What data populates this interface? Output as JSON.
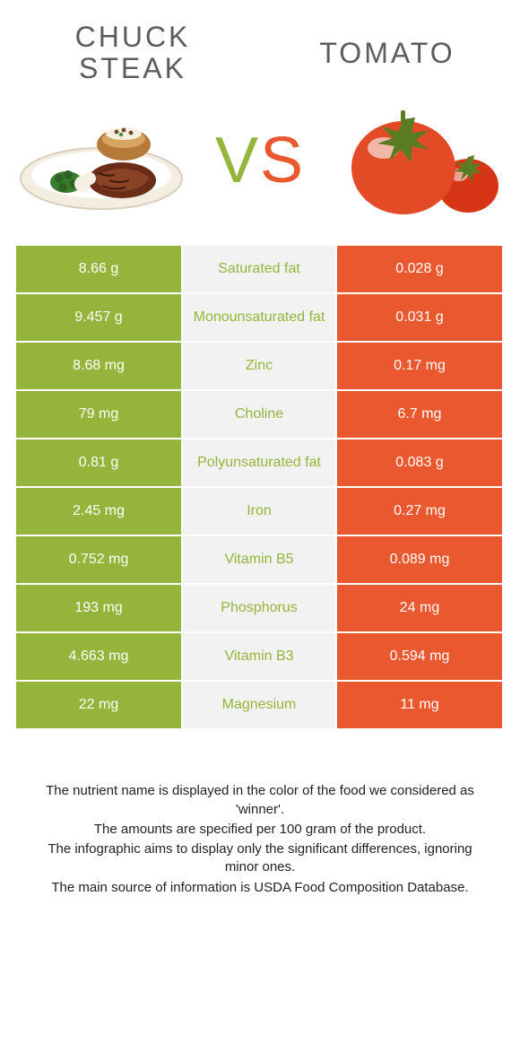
{
  "left": {
    "title": "CHUCK STEAK"
  },
  "right": {
    "title": "TOMATO"
  },
  "vs": {
    "v": "V",
    "s": "S"
  },
  "colors": {
    "left_cell": "#95b43c",
    "right_cell": "#e9582e",
    "mid_cell": "#f2f2f2",
    "label_left_win": "#95b43c",
    "label_right_win": "#e9582e",
    "footnote": "#222222"
  },
  "rows": [
    {
      "left": "8.66 g",
      "label": "Saturated fat",
      "right": "0.028 g",
      "winner": "left"
    },
    {
      "left": "9.457 g",
      "label": "Monounsaturated fat",
      "right": "0.031 g",
      "winner": "left"
    },
    {
      "left": "8.68 mg",
      "label": "Zinc",
      "right": "0.17 mg",
      "winner": "left"
    },
    {
      "left": "79 mg",
      "label": "Choline",
      "right": "6.7 mg",
      "winner": "left"
    },
    {
      "left": "0.81 g",
      "label": "Polyunsaturated fat",
      "right": "0.083 g",
      "winner": "left"
    },
    {
      "left": "2.45 mg",
      "label": "Iron",
      "right": "0.27 mg",
      "winner": "left"
    },
    {
      "left": "0.752 mg",
      "label": "Vitamin B5",
      "right": "0.089 mg",
      "winner": "left"
    },
    {
      "left": "193 mg",
      "label": "Phosphorus",
      "right": "24 mg",
      "winner": "left"
    },
    {
      "left": "4.663 mg",
      "label": "Vitamin B3",
      "right": "0.594 mg",
      "winner": "left"
    },
    {
      "left": "22 mg",
      "label": "Magnesium",
      "right": "11 mg",
      "winner": "left"
    }
  ],
  "footnotes": [
    "The nutrient name is displayed in the color of the food we considered as 'winner'.",
    "The amounts are specified per 100 gram of the product.",
    "The infographic aims to display only the significant differences, ignoring minor ones.",
    "The main source of information is USDA Food Composition Database."
  ]
}
